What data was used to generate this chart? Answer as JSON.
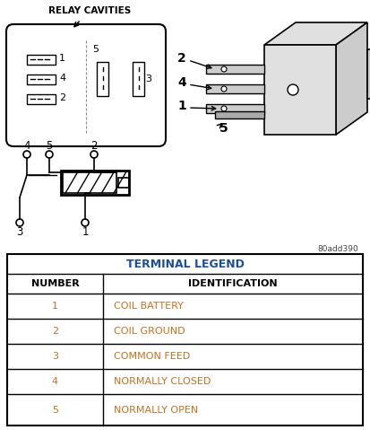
{
  "bg_color": "#ffffff",
  "watermark": "80add390",
  "table_header": "TERMINAL LEGEND",
  "table_col1_header": "NUMBER",
  "table_col2_header": "IDENTIFICATION",
  "table_header_color": "#1a4fa0",
  "table_data_color": "#c87020",
  "table_label_color": "#000000",
  "table_rows": [
    [
      "1",
      "COIL BATTERY"
    ],
    [
      "2",
      "COIL GROUND"
    ],
    [
      "3",
      "COMMON FEED"
    ],
    [
      "4",
      "NORMALLY CLOSED"
    ],
    [
      "5",
      "NORMALLY OPEN"
    ]
  ],
  "relay_cavities_label": "RELAY CAVITIES"
}
